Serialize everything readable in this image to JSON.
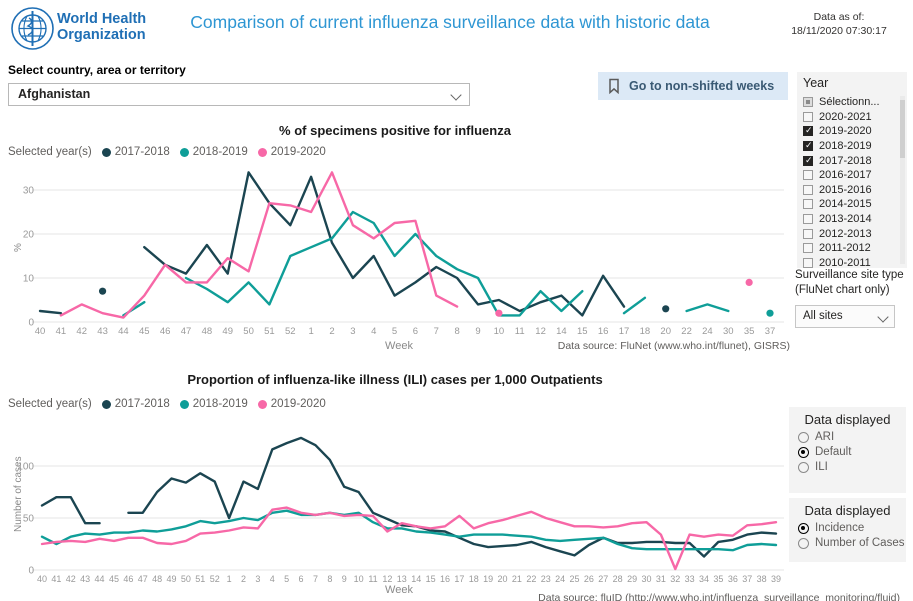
{
  "header": {
    "logo_line1": "World Health",
    "logo_line2": "Organization",
    "title": "Comparison of current influenza surveillance data with historic data",
    "data_as_of_label": "Data as of:",
    "data_as_of_value": "18/11/2020 07:30:17"
  },
  "country_selector": {
    "label": "Select country, area or territory",
    "value": "Afghanistan"
  },
  "bookmark_button": {
    "label": "Go to non-shifted weeks"
  },
  "year_filter": {
    "title": "Year",
    "options": [
      {
        "label": "Sélectionn...",
        "state": "partial"
      },
      {
        "label": "2020-2021",
        "state": "unchecked"
      },
      {
        "label": "2019-2020",
        "state": "checked"
      },
      {
        "label": "2018-2019",
        "state": "checked"
      },
      {
        "label": "2017-2018",
        "state": "checked"
      },
      {
        "label": "2016-2017",
        "state": "unchecked"
      },
      {
        "label": "2015-2016",
        "state": "unchecked"
      },
      {
        "label": "2014-2015",
        "state": "unchecked"
      },
      {
        "label": "2013-2014",
        "state": "unchecked"
      },
      {
        "label": "2012-2013",
        "state": "unchecked"
      },
      {
        "label": "2011-2012",
        "state": "unchecked"
      },
      {
        "label": "2010-2011",
        "state": "unchecked"
      }
    ]
  },
  "site_type_filter": {
    "label_line1": "Surveillance site type",
    "label_line2": "(FluNet chart only)",
    "value": "All sites"
  },
  "charts": {
    "legend_label": "Selected year(s)"
  },
  "chart_data": [
    {
      "type": "line",
      "title": "% of specimens positive for influenza",
      "xlabel": "Week",
      "ylabel": "%",
      "ylim": [
        0,
        36
      ],
      "yticks": [
        0,
        10,
        20,
        30
      ],
      "legend_position": "top-left",
      "grid": true,
      "source": "Data source: FluNet (www.who.int/flunet), GISRS)",
      "categories": [
        "40",
        "41",
        "42",
        "43",
        "44",
        "45",
        "46",
        "47",
        "48",
        "49",
        "50",
        "51",
        "52",
        "1",
        "2",
        "3",
        "4",
        "5",
        "6",
        "7",
        "8",
        "9",
        "10",
        "11",
        "12",
        "14",
        "15",
        "16",
        "17",
        "18",
        "20",
        "22",
        "24",
        "30",
        "35",
        "37"
      ],
      "series": [
        {
          "name": "2017-2018",
          "color": "#1b4551",
          "values": [
            2.5,
            2,
            null,
            7,
            null,
            17,
            13,
            11,
            17.5,
            11,
            34,
            27,
            22,
            33,
            18,
            10,
            15,
            6,
            9,
            12.5,
            10,
            4,
            5,
            2.5,
            4.5,
            6,
            1.5,
            10.5,
            3.5,
            null,
            3,
            null,
            null,
            null,
            null,
            null
          ]
        },
        {
          "name": "2018-2019",
          "color": "#0f9e98",
          "values": [
            null,
            null,
            null,
            null,
            1.5,
            4.5,
            null,
            10,
            7.5,
            4.5,
            9,
            4,
            15,
            17,
            19,
            25,
            22.5,
            15,
            20,
            15,
            12,
            10,
            1.5,
            1.5,
            7,
            2.5,
            7,
            null,
            2,
            5.5,
            null,
            2.5,
            4,
            2.5,
            null,
            2
          ]
        },
        {
          "name": "2019-2020",
          "color": "#f768a7",
          "values": [
            null,
            1.5,
            4,
            2,
            1,
            6,
            13,
            9,
            9,
            14.5,
            11.5,
            27,
            26.5,
            25,
            34,
            22,
            19,
            22.5,
            23,
            6,
            3.5,
            null,
            2,
            null,
            null,
            null,
            null,
            null,
            null,
            null,
            null,
            null,
            null,
            null,
            9,
            null
          ]
        }
      ]
    },
    {
      "type": "line",
      "title": "Proportion of influenza-like illness (ILI) cases per 1,000 Outpatients",
      "xlabel": "Week",
      "ylabel": "Number of cases",
      "ylim": [
        0,
        140
      ],
      "yticks": [
        0,
        50,
        100
      ],
      "legend_position": "top-left",
      "grid": true,
      "source": "Data source: fluID (http://www.who.int/influenza_surveillance_monitoring/fluid)",
      "categories": [
        "40",
        "41",
        "42",
        "43",
        "44",
        "45",
        "46",
        "47",
        "48",
        "49",
        "50",
        "51",
        "52",
        "1",
        "2",
        "3",
        "4",
        "5",
        "6",
        "7",
        "8",
        "9",
        "10",
        "11",
        "12",
        "13",
        "14",
        "15",
        "16",
        "17",
        "18",
        "19",
        "20",
        "21",
        "22",
        "23",
        "24",
        "25",
        "26",
        "27",
        "28",
        "29",
        "30",
        "31",
        "32",
        "33",
        "34",
        "35",
        "36",
        "37",
        "38",
        "39"
      ],
      "series": [
        {
          "name": "2017-2018",
          "color": "#1b4551",
          "values": [
            62,
            70,
            70,
            45,
            45,
            null,
            55,
            55,
            75,
            88,
            84,
            93,
            85,
            50,
            85,
            78,
            116,
            122,
            127,
            120,
            106,
            80,
            75,
            55,
            49,
            43,
            42,
            38,
            37,
            31,
            25,
            22,
            23,
            24,
            27,
            22,
            18,
            14,
            24,
            31,
            26,
            26,
            27,
            27,
            26,
            26,
            13,
            27,
            29,
            34,
            36,
            35
          ]
        },
        {
          "name": "2018-2019",
          "color": "#0f9e98",
          "values": [
            32,
            25,
            32,
            35,
            34,
            36,
            36,
            38,
            37,
            39,
            42,
            47,
            45,
            47,
            50,
            48,
            55,
            57,
            53,
            53,
            55,
            53,
            55,
            46,
            40,
            40,
            37,
            36,
            34,
            32,
            34,
            34,
            34,
            33,
            32,
            29,
            28,
            29,
            30,
            31,
            25,
            21,
            20,
            20,
            20,
            20,
            20,
            20,
            19,
            24,
            25,
            24
          ]
        },
        {
          "name": "2019-2020",
          "color": "#f768a7",
          "values": [
            25,
            27,
            28,
            27,
            30,
            28,
            31,
            31,
            26,
            25,
            28,
            35,
            36,
            38,
            41,
            40,
            58,
            60,
            55,
            53,
            55,
            52,
            53,
            52,
            37,
            45,
            42,
            40,
            42,
            52,
            40,
            45,
            48,
            52,
            56,
            50,
            46,
            42,
            42,
            41,
            42,
            45,
            46,
            34,
            1,
            34,
            32,
            34,
            33,
            43,
            44,
            46
          ]
        }
      ]
    }
  ],
  "data_displayed_panels": [
    {
      "title": "Data displayed",
      "options": [
        {
          "label": "ARI",
          "selected": false
        },
        {
          "label": "Default",
          "selected": true
        },
        {
          "label": "ILI",
          "selected": false
        }
      ]
    },
    {
      "title": "Data displayed",
      "options": [
        {
          "label": "Incidence",
          "selected": true
        },
        {
          "label": "Number of Cases",
          "selected": false
        }
      ]
    }
  ],
  "colors": {
    "title_blue": "#2e96d3",
    "logo_blue": "#1f6fb5",
    "series_2017_2018": "#1b4551",
    "series_2018_2019": "#0f9e98",
    "series_2019_2020": "#f768a7",
    "button_bg": "#dce9f6",
    "panel_bg": "#f3f3f3"
  }
}
